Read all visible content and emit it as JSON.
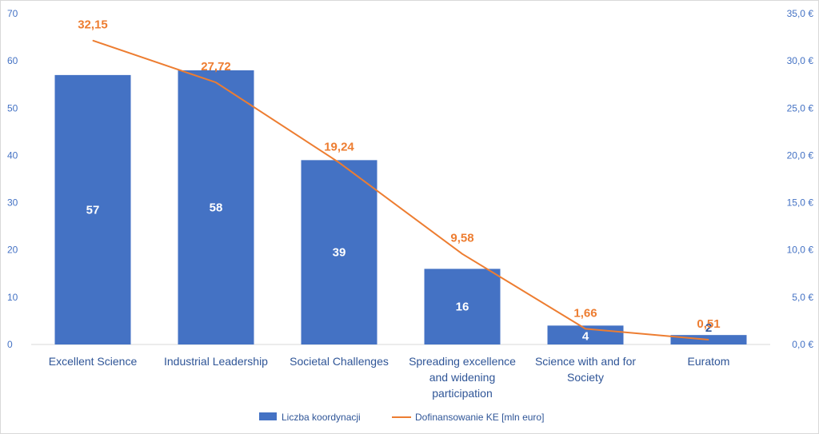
{
  "chart_data": {
    "type": "bar+line",
    "categories": [
      "Excellent Science",
      "Industrial Leadership",
      "Societal Challenges",
      "Spreading excellence and widening participation",
      "Science with and for Society",
      "Euratom"
    ],
    "category_lines": [
      [
        "Excellent Science"
      ],
      [
        "Industrial Leadership"
      ],
      [
        "Societal Challenges"
      ],
      [
        "Spreading excellence",
        "and widening",
        "participation"
      ],
      [
        "Science with and for",
        "Society"
      ],
      [
        "Euratom"
      ]
    ],
    "series": [
      {
        "name": "Liczba koordynacji",
        "type": "bar",
        "axis": "left",
        "color": "#4472c4",
        "values": [
          57,
          58,
          39,
          16,
          4,
          2
        ],
        "labels": [
          "57",
          "58",
          "39",
          "16",
          "4",
          "2"
        ]
      },
      {
        "name": "Dofinansowanie KE [mln euro]",
        "type": "line",
        "axis": "right",
        "color": "#ed7d31",
        "values": [
          32.15,
          27.72,
          19.24,
          9.58,
          1.66,
          0.51
        ],
        "labels": [
          "32,15",
          "27,72",
          "19,24",
          "9,58",
          "1,66",
          "0,51"
        ]
      }
    ],
    "y_left": {
      "lim": [
        0,
        70
      ],
      "ticks": [
        0,
        10,
        20,
        30,
        40,
        50,
        60,
        70
      ],
      "tick_labels": [
        "0",
        "10",
        "20",
        "30",
        "40",
        "50",
        "60",
        "70"
      ]
    },
    "y_right": {
      "lim": [
        0,
        35
      ],
      "ticks": [
        0,
        5,
        10,
        15,
        20,
        25,
        30,
        35
      ],
      "tick_labels": [
        "0,0 €",
        "5,0 €",
        "10,0 €",
        "15,0 €",
        "20,0 €",
        "25,0 €",
        "30,0 €",
        "35,0 €"
      ]
    },
    "grid": false,
    "legend": {
      "position": "bottom",
      "entries": [
        "Liczba koordynacji",
        "Dofinansowanie KE [mln euro]"
      ]
    },
    "colors": {
      "bar": "#4472c4",
      "line": "#ed7d31",
      "axis_text": "#4472c4",
      "category_text": "#2f5597"
    }
  }
}
